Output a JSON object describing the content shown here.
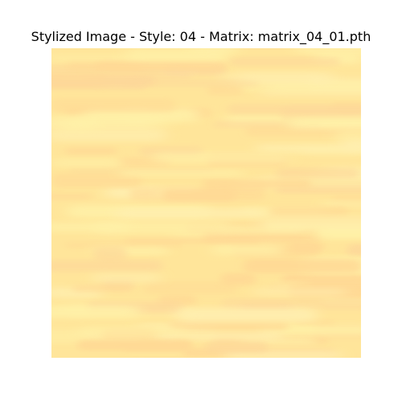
{
  "figure": {
    "title": "Stylized Image - Style: 04 - Matrix: matrix_04_01.pth"
  },
  "image": {
    "description_icon": "stylized-texture-image",
    "palette": {
      "base": "#ffe59a",
      "light": "#fff1a8",
      "warm": "#ffd995",
      "pale": "#ffefb0",
      "peach": "#fdd89a"
    }
  }
}
